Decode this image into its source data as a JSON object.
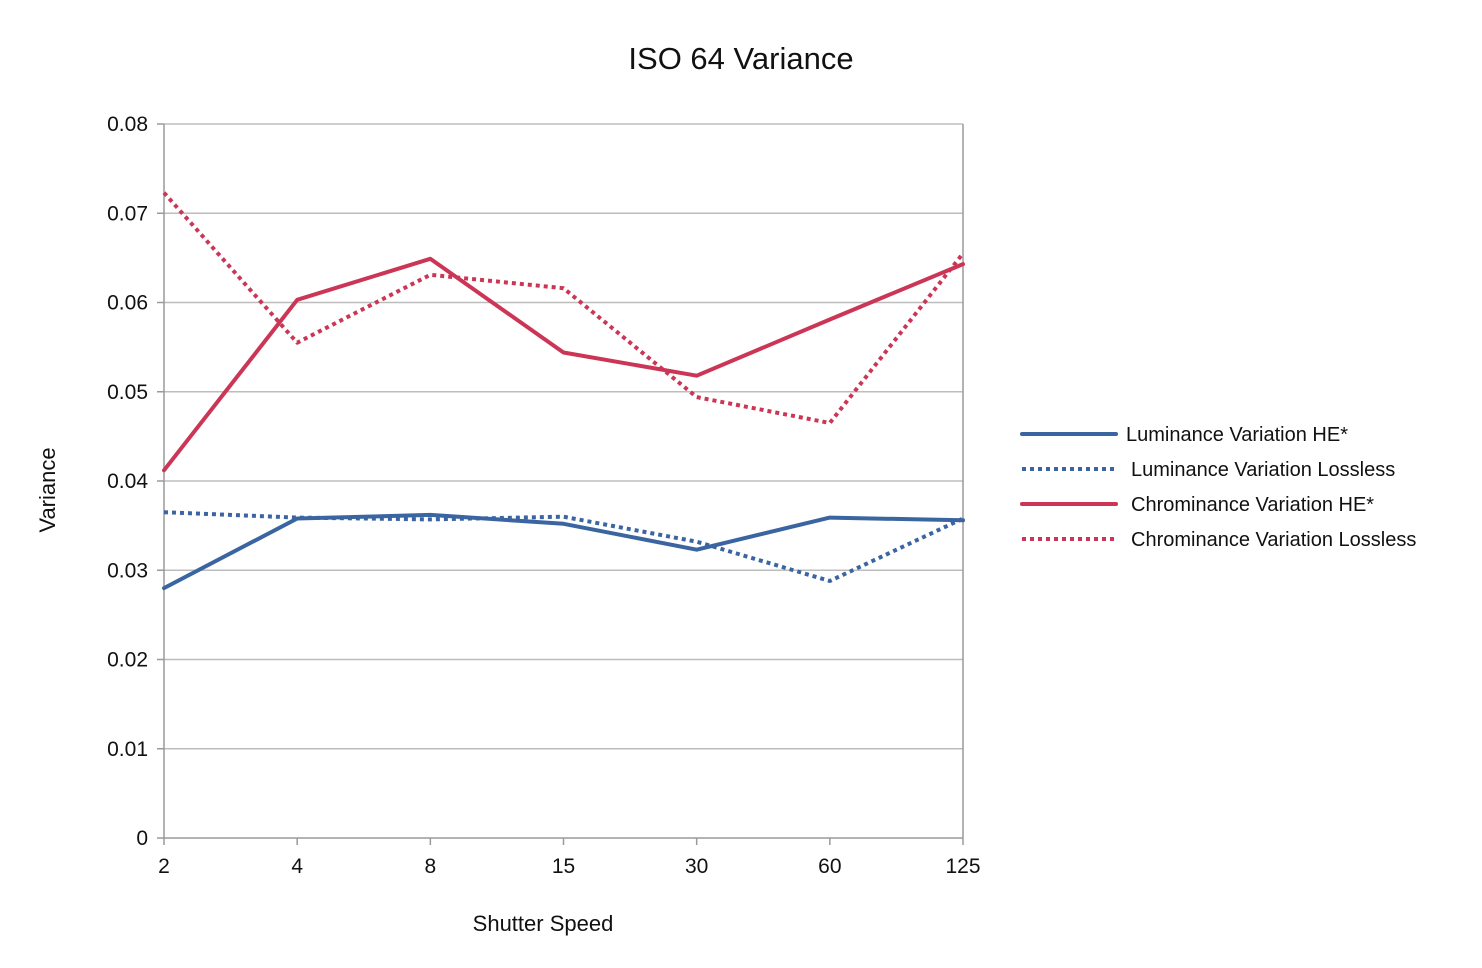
{
  "chart_data": {
    "type": "line",
    "title": "ISO 64 Variance",
    "xlabel": "Shutter Speed",
    "ylabel": "Variance",
    "categories": [
      "2",
      "4",
      "8",
      "15",
      "30",
      "60",
      "125"
    ],
    "ylim": [
      0,
      0.08
    ],
    "yticks": [
      "0",
      "0.01",
      "0.02",
      "0.03",
      "0.04",
      "0.05",
      "0.06",
      "0.07",
      "0.08"
    ],
    "grid": "horizontal",
    "legend_position": "right",
    "series": [
      {
        "name": "Luminance Variation HE*",
        "color": "#3a65a0",
        "style": "solid",
        "values": [
          0.028,
          0.0358,
          0.0362,
          0.0352,
          0.0323,
          0.0359,
          0.0356
        ]
      },
      {
        "name": "Luminance Variation Lossless",
        "color": "#3a65a0",
        "style": "dotted",
        "values": [
          0.0365,
          0.0359,
          0.0357,
          0.036,
          0.0332,
          0.0288,
          0.0358
        ]
      },
      {
        "name": "Chrominance Variation HE*",
        "color": "#cc3656",
        "style": "solid",
        "values": [
          0.0412,
          0.0603,
          0.0649,
          0.0544,
          0.0518,
          0.0581,
          0.0643
        ]
      },
      {
        "name": "Chrominance Variation Lossless",
        "color": "#cc3656",
        "style": "dotted",
        "values": [
          0.0723,
          0.0555,
          0.0631,
          0.0616,
          0.0494,
          0.0465,
          0.0655
        ]
      }
    ]
  }
}
